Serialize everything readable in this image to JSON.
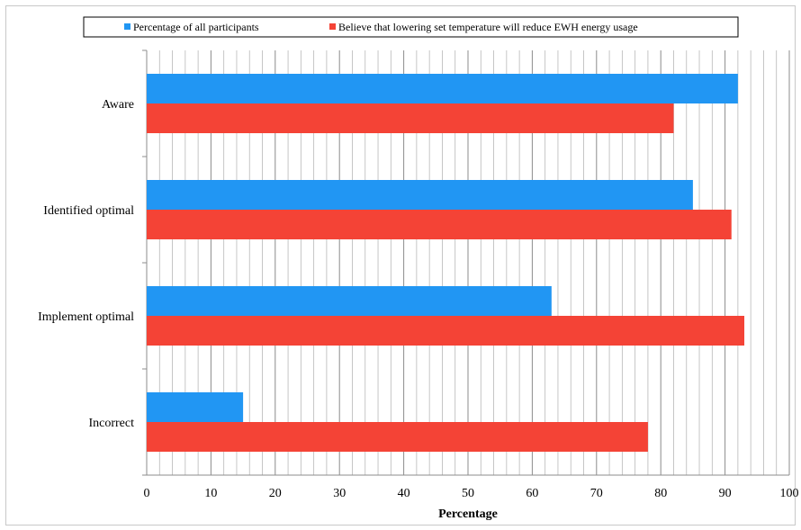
{
  "chart_data": {
    "type": "bar",
    "orientation": "horizontal",
    "categories": [
      "Aware",
      "Identified optimal",
      "Implement optimal",
      "Incorrect"
    ],
    "series": [
      {
        "name": "Percentage of all participants",
        "color": "#2196f3",
        "values": [
          92,
          85,
          63,
          15
        ]
      },
      {
        "name": "Believe that lowering set temperature will reduce EWH energy usage",
        "color": "#f44336",
        "values": [
          82,
          91,
          93,
          78
        ]
      }
    ],
    "xlabel": "Percentage",
    "ylabel": "",
    "xlim": [
      0,
      100
    ],
    "x_ticks": [
      0,
      10,
      20,
      30,
      40,
      50,
      60,
      70,
      80,
      90,
      100
    ],
    "x_tick_labels": [
      "0",
      "10",
      "20",
      "30",
      "40",
      "50",
      "60",
      "70",
      "80",
      "90",
      "100"
    ],
    "minor_gridlines": true,
    "legend_position": "top"
  }
}
